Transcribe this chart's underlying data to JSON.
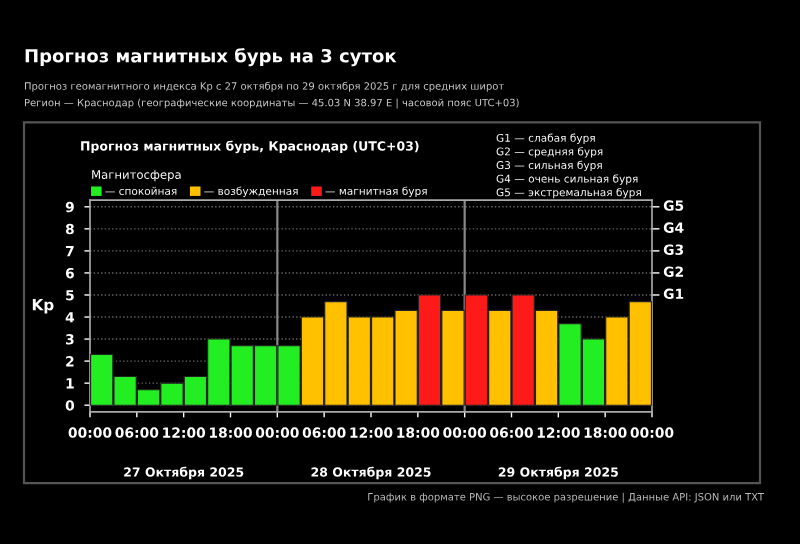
{
  "chart_data": {
    "type": "bar",
    "title": "Прогноз магнитных бурь на 3 суток",
    "subtitle": "Прогноз геомагнитного индекса Kp с 27 октября по 29 октября 2025 г для средних широт\nРегион — Краснодар (географические координаты — 45.03 N 38.97 E | часовой пояс UTC+03)",
    "ylabel": "Kp",
    "legend_title": "Магнитосфера",
    "annotations": [
      "Прогноз магнитных бурь, Краснодар (UTC+03)",
      "27 Октября 2025",
      "28 Октября 2025",
      "29 Октября 2025",
      "G1 — слабая буря",
      "G2 — средняя буря",
      "G3 — сильная буря",
      "G4 — очень сильная буря",
      "G5 — экстремальная буря",
      "График в формате PNG — высокое разрешение | Данные API: JSON или TXT"
    ],
    "x": [
      "2025-10-27T01:30",
      "2025-10-27T04:30",
      "2025-10-27T07:30",
      "2025-10-27T10:30",
      "2025-10-27T13:30",
      "2025-10-27T16:30",
      "2025-10-27T19:30",
      "2025-10-27T22:30",
      "2025-10-28T01:30",
      "2025-10-28T04:30",
      "2025-10-28T07:30",
      "2025-10-28T10:30",
      "2025-10-28T13:30",
      "2025-10-28T16:30",
      "2025-10-28T19:30",
      "2025-10-28T22:30",
      "2025-10-29T01:30",
      "2025-10-29T04:30",
      "2025-10-29T07:30",
      "2025-10-29T10:30",
      "2025-10-29T13:30",
      "2025-10-29T16:30",
      "2025-10-29T19:30",
      "2025-10-29T22:30"
    ],
    "series": [
      {
        "name": "— спокойная",
        "color": "#22ee22",
        "values": [
          2.3,
          1.3,
          0.7,
          1.0,
          1.3,
          3.0,
          2.7,
          2.7,
          2.7,
          null,
          null,
          null,
          null,
          null,
          null,
          null,
          null,
          null,
          null,
          null,
          3.7,
          3.0,
          null,
          null
        ]
      },
      {
        "name": "— возбужденная",
        "color": "#ffc000",
        "values": [
          null,
          null,
          null,
          null,
          null,
          null,
          null,
          null,
          null,
          4.0,
          4.7,
          4.0,
          4.0,
          4.3,
          null,
          4.3,
          null,
          4.3,
          null,
          4.3,
          null,
          null,
          4.0,
          4.7
        ]
      },
      {
        "name": "— магнитная буря",
        "color": "#ff1a1a",
        "values": [
          null,
          null,
          null,
          null,
          null,
          null,
          null,
          null,
          null,
          null,
          null,
          null,
          null,
          null,
          5.0,
          null,
          5.0,
          null,
          5.0,
          null,
          null,
          null,
          null,
          null
        ]
      }
    ],
    "xlim": [
      "2025-10-27T00:00",
      "2025-10-30T00:00"
    ],
    "xticks": [
      {
        "value": "2025-10-27T00:00",
        "label": "00:00"
      },
      {
        "value": "2025-10-27T06:00",
        "label": "06:00"
      },
      {
        "value": "2025-10-27T12:00",
        "label": "12:00"
      },
      {
        "value": "2025-10-27T18:00",
        "label": "18:00"
      },
      {
        "value": "2025-10-28T00:00",
        "label": "00:00"
      },
      {
        "value": "2025-10-28T06:00",
        "label": "06:00"
      },
      {
        "value": "2025-10-28T12:00",
        "label": "12:00"
      },
      {
        "value": "2025-10-28T18:00",
        "label": "18:00"
      },
      {
        "value": "2025-10-29T00:00",
        "label": "00:00"
      },
      {
        "value": "2025-10-29T06:00",
        "label": "06:00"
      },
      {
        "value": "2025-10-29T12:00",
        "label": "12:00"
      },
      {
        "value": "2025-10-29T18:00",
        "label": "18:00"
      },
      {
        "value": "2025-10-30T00:00",
        "label": "00:00"
      }
    ],
    "ylim": [
      -0.3,
      9.3
    ],
    "yticks": [
      0,
      1,
      2,
      3,
      4,
      5,
      6,
      7,
      8,
      9
    ],
    "ref_lines": [
      {
        "axis": "x",
        "value": "2025-10-28T00:00",
        "color": "#888888"
      },
      {
        "axis": "x",
        "value": "2025-10-29T00:00",
        "color": "#888888"
      },
      {
        "axis": "y",
        "value": 5,
        "label": "G1",
        "color": "#ffffff"
      },
      {
        "axis": "y",
        "value": 6,
        "label": "G2",
        "color": "#ffffff"
      },
      {
        "axis": "y",
        "value": 7,
        "label": "G3",
        "color": "#ffffff"
      },
      {
        "axis": "y",
        "value": 8,
        "label": "G4",
        "color": "#ffffff"
      },
      {
        "axis": "y",
        "value": 9,
        "label": "G5",
        "color": "#ffffff"
      }
    ],
    "grid": "y",
    "legend": "top left"
  }
}
